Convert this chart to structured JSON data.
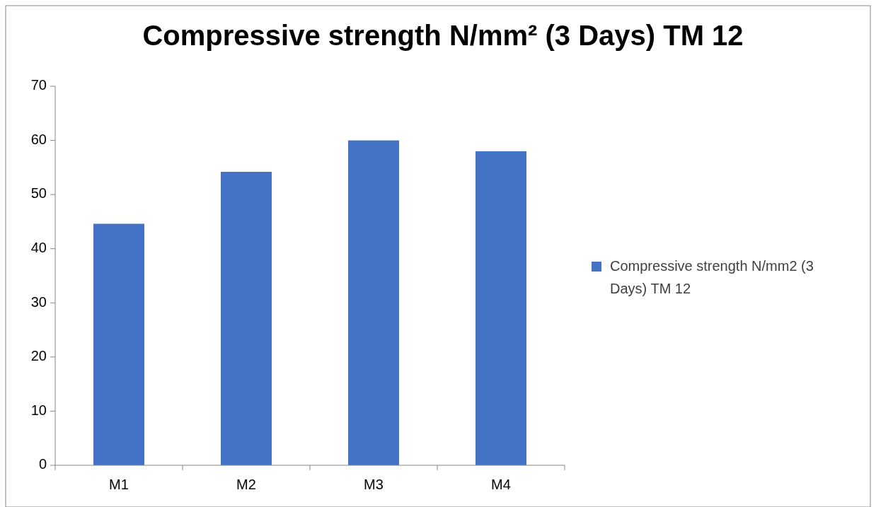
{
  "chart_data": {
    "type": "bar",
    "title": "Compressive strength N/mm² (3 Days) TM 12",
    "categories": [
      "M1",
      "M2",
      "M3",
      "M4"
    ],
    "series": [
      {
        "name": "Compressive strength N/mm2 (3 Days) TM 12",
        "color": "#4472c4",
        "values": [
          44.6,
          54.2,
          60,
          58
        ]
      }
    ],
    "ylim": [
      0,
      70
    ],
    "yticks": [
      0,
      10,
      20,
      30,
      40,
      50,
      60,
      70
    ],
    "grid": false,
    "legend": "right"
  }
}
